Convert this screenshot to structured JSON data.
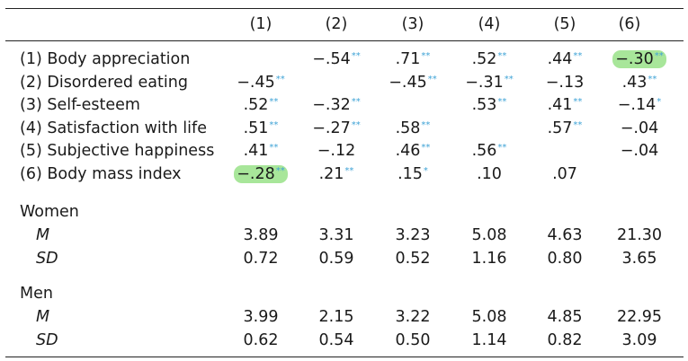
{
  "columns": [
    "(1)",
    "(2)",
    "(3)",
    "(4)",
    "(5)",
    "(6)"
  ],
  "rows": [
    {
      "label": "(1) Body appreciation",
      "cells": [
        null,
        {
          "v": "−.54",
          "s": "**"
        },
        {
          "v": ".71",
          "s": "**"
        },
        {
          "v": ".52",
          "s": "**"
        },
        {
          "v": ".44",
          "s": "**"
        },
        {
          "v": "−.30",
          "s": "**",
          "hl": true
        }
      ]
    },
    {
      "label": "(2) Disordered eating",
      "cells": [
        {
          "v": "−.45",
          "s": "**"
        },
        null,
        {
          "v": "−.45",
          "s": "**"
        },
        {
          "v": "−.31",
          "s": "**"
        },
        {
          "v": "−.13",
          "s": ""
        },
        {
          "v": ".43",
          "s": "**"
        }
      ]
    },
    {
      "label": "(3) Self-esteem",
      "cells": [
        {
          "v": ".52",
          "s": "**"
        },
        {
          "v": "−.32",
          "s": "**"
        },
        null,
        {
          "v": ".53",
          "s": "**"
        },
        {
          "v": ".41",
          "s": "**"
        },
        {
          "v": "−.14",
          "s": "*"
        }
      ]
    },
    {
      "label": "(4) Satisfaction with life",
      "cells": [
        {
          "v": ".51",
          "s": "**"
        },
        {
          "v": "−.27",
          "s": "**"
        },
        {
          "v": ".58",
          "s": "**"
        },
        null,
        {
          "v": ".57",
          "s": "**"
        },
        {
          "v": "−.04",
          "s": ""
        }
      ]
    },
    {
      "label": "(5) Subjective happiness",
      "cells": [
        {
          "v": ".41",
          "s": "**"
        },
        {
          "v": "−.12",
          "s": ""
        },
        {
          "v": ".46",
          "s": "**"
        },
        {
          "v": ".56",
          "s": "**"
        },
        null,
        {
          "v": "−.04",
          "s": ""
        }
      ]
    },
    {
      "label": "(6) Body mass index",
      "cells": [
        {
          "v": "−.28",
          "s": "**",
          "hl": true
        },
        {
          "v": ".21",
          "s": "**"
        },
        {
          "v": ".15",
          "s": "*"
        },
        {
          "v": ".10",
          "s": ""
        },
        {
          "v": ".07",
          "s": ""
        },
        null
      ]
    }
  ],
  "groups": [
    {
      "name": "Women",
      "stats": [
        {
          "label": "M",
          "values": [
            "3.89",
            "3.31",
            "3.23",
            "5.08",
            "4.63",
            "21.30"
          ]
        },
        {
          "label": "SD",
          "values": [
            "0.72",
            "0.59",
            "0.52",
            "1.16",
            "0.80",
            "3.65"
          ]
        }
      ]
    },
    {
      "name": "Men",
      "stats": [
        {
          "label": "M",
          "values": [
            "3.99",
            "2.15",
            "3.22",
            "5.08",
            "4.85",
            "22.95"
          ]
        },
        {
          "label": "SD",
          "values": [
            "0.62",
            "0.54",
            "0.50",
            "1.14",
            "0.82",
            "3.09"
          ]
        }
      ]
    }
  ],
  "colors": {
    "significance_star": "#3fa3d6",
    "highlight": "#a8e69a",
    "rule": "#222222"
  }
}
